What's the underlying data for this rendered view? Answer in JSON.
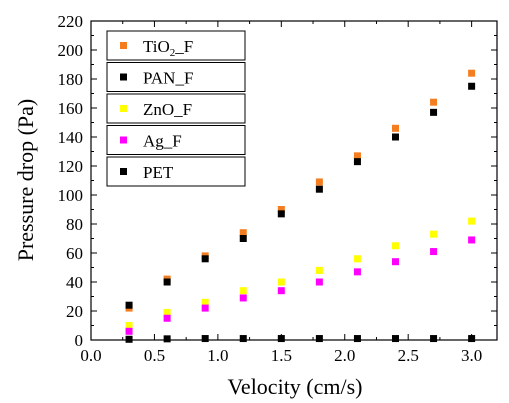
{
  "chart_data": {
    "type": "scatter",
    "xlabel": "Velocity (cm/s)",
    "ylabel": "Pressure drop (Pa)",
    "xlim": [
      0.0,
      3.2
    ],
    "ylim": [
      0,
      220
    ],
    "x_ticks": [
      "0.0",
      "0.5",
      "1.0",
      "1.5",
      "2.0",
      "2.5",
      "3.0"
    ],
    "y_ticks": [
      "0",
      "20",
      "40",
      "60",
      "80",
      "100",
      "120",
      "140",
      "160",
      "180",
      "200",
      "220"
    ],
    "grid": false,
    "legend_placement": "top-left",
    "x": [
      0.3,
      0.6,
      0.9,
      1.2,
      1.5,
      1.8,
      2.1,
      2.4,
      2.7,
      3.0
    ],
    "series": [
      {
        "name": "TiO2_F",
        "legend_main": "TiO",
        "legend_sub": "2",
        "legend_tail": "_F",
        "color": "#f47d20",
        "values": [
          22,
          42,
          58,
          74,
          90,
          109,
          127,
          146,
          164,
          184
        ]
      },
      {
        "name": "PAN_F",
        "legend_main": "PAN_F",
        "color": "#000000",
        "values": [
          24,
          40,
          56,
          70,
          87,
          104,
          123,
          140,
          157,
          175
        ]
      },
      {
        "name": "ZnO_F",
        "legend_main": "ZnO_F",
        "color": "#ffff00",
        "values": [
          10,
          19,
          26,
          34,
          40,
          48,
          56,
          65,
          73,
          82
        ]
      },
      {
        "name": "Ag_F",
        "legend_main": "Ag_F",
        "color": "#ff00ff",
        "values": [
          6,
          15,
          22,
          29,
          34,
          40,
          47,
          54,
          61,
          69
        ]
      },
      {
        "name": "PET",
        "legend_main": "PET",
        "color": "#000000",
        "values": [
          0.5,
          0.8,
          1.0,
          1.0,
          1.0,
          1.0,
          1.0,
          1.0,
          1.0,
          1.0
        ]
      }
    ]
  }
}
